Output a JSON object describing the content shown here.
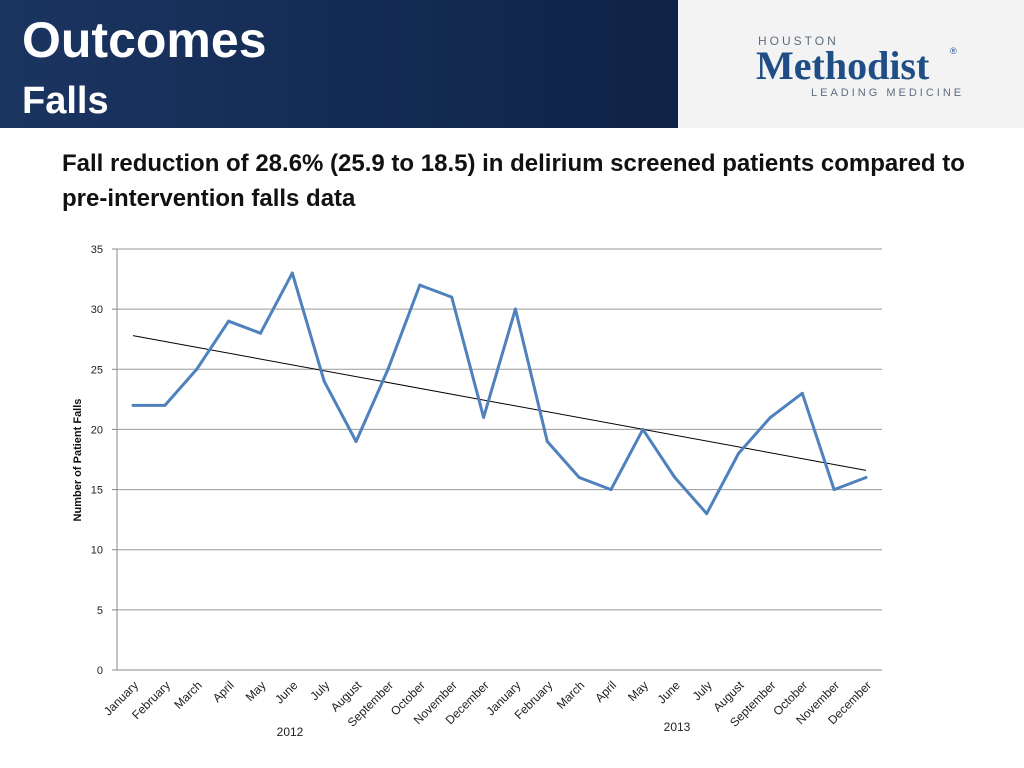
{
  "header": {
    "title": "Outcomes",
    "subtitle": "Falls"
  },
  "logo": {
    "top": "HOUSTON",
    "main": "Methodist",
    "registered": "®",
    "tagline": "LEADING MEDICINE"
  },
  "slide": {
    "subtitle": "Fall reduction of 28.6% (25.9 to 18.5) in delirium screened patients compared to pre-intervention falls data"
  },
  "chart_data": {
    "type": "line",
    "title": "",
    "xlabel": "",
    "ylabel": "Number of Patient Falls",
    "ylim": [
      0,
      35
    ],
    "yticks": [
      0,
      5,
      10,
      15,
      20,
      25,
      30,
      35
    ],
    "grid": true,
    "categories": [
      "January",
      "February",
      "March",
      "April",
      "May",
      "June",
      "July",
      "August",
      "September",
      "October",
      "November",
      "December",
      "January",
      "February",
      "March",
      "April",
      "May",
      "June",
      "July",
      "August",
      "September",
      "October",
      "November",
      "December"
    ],
    "year_labels": [
      "2012",
      "2013"
    ],
    "series": [
      {
        "values": [
          22,
          22,
          25,
          29,
          28,
          33,
          24,
          19,
          25,
          32,
          31,
          21,
          30,
          19,
          16,
          15,
          20,
          16,
          13,
          18,
          21,
          23,
          15,
          16
        ],
        "color": "#4f81bd"
      }
    ],
    "trendline": {
      "start": 27.8,
      "end": 16.6,
      "color": "#000000"
    }
  }
}
